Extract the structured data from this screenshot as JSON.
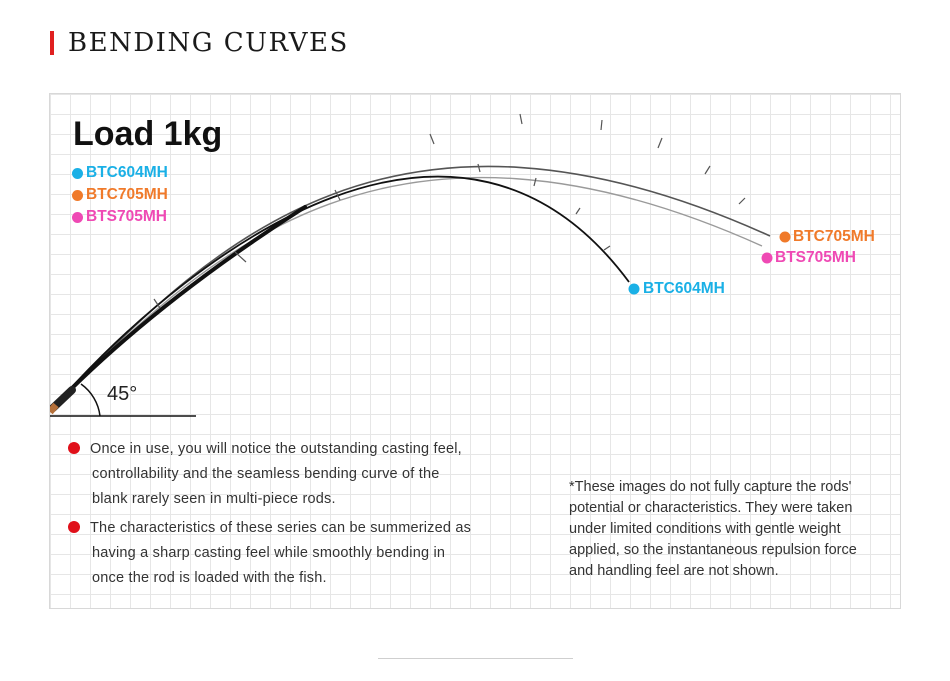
{
  "header": {
    "title": "BENDING CURVES",
    "accent": "#e02020"
  },
  "load_title": "Load 1kg",
  "legend": [
    {
      "label": "BTC604MH",
      "color": "#1ab0e6"
    },
    {
      "label": "BTC705MH",
      "color": "#f07a2a"
    },
    {
      "label": "BTS705MH",
      "color": "#ef49b4"
    }
  ],
  "tip_labels": {
    "btc705": "BTC705MH",
    "bts705": "BTS705MH",
    "btc604": "BTC604MH"
  },
  "angle": {
    "label": "45°"
  },
  "bullets": [
    {
      "lines": [
        "Once in use, you will notice the outstanding casting feel,",
        "controllability and the seamless bending curve of the",
        "blank rarely seen in multi-piece rods."
      ]
    },
    {
      "lines": [
        "The characteristics of these series can be summerized as",
        "having a sharp casting feel while smoothly bending in",
        "once the rod is loaded with the fish."
      ]
    }
  ],
  "note": {
    "lines": [
      "*These images do not fully capture the rods'",
      "potential or characteristics. They were taken",
      "under limited conditions with gentle weight",
      "applied, so the instantaneous repulsion force",
      "and handling feel are not shown."
    ]
  }
}
